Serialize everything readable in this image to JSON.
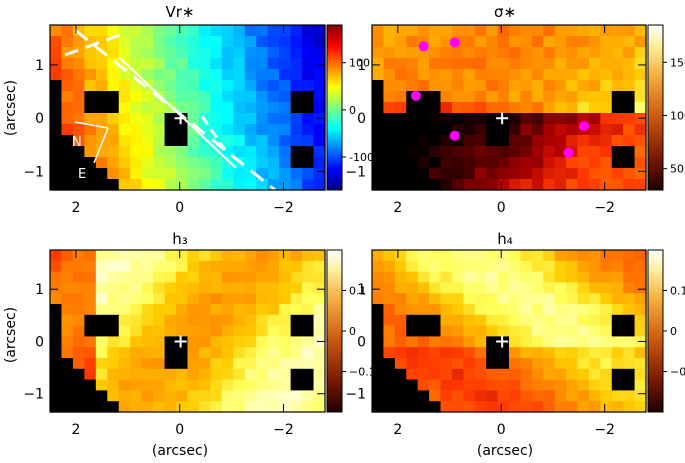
{
  "figure": {
    "y_axis_label": "(arcsec)",
    "x_axis_label": "(arcsec)"
  },
  "chart_data": [
    {
      "type": "heatmap",
      "title": "Vr∗",
      "colormap": "jet",
      "xlim": [
        2.5,
        -2.8
      ],
      "ylim": [
        -1.35,
        1.75
      ],
      "x_ticks": [
        2,
        0,
        -2
      ],
      "y_ticks": [
        1,
        0,
        -1
      ],
      "colorbar_ticks": [
        100,
        0,
        -100
      ],
      "colorbar_range": [
        -170,
        180
      ],
      "compass": {
        "north": "N",
        "east": "E"
      },
      "overlays": [
        "white dashed lines",
        "center cross"
      ]
    },
    {
      "type": "heatmap",
      "title": "σ∗",
      "colormap": "hot",
      "xlim": [
        2.5,
        -2.8
      ],
      "ylim": [
        -1.35,
        1.75
      ],
      "x_ticks": [
        2,
        0,
        -2
      ],
      "y_ticks": [
        1,
        0,
        -1
      ],
      "colorbar_ticks": [
        150,
        100,
        50
      ],
      "colorbar_range": [
        30,
        185
      ],
      "marker_color": "#ff00ff",
      "markers": [
        {
          "x": 1.5,
          "y": 1.35
        },
        {
          "x": 0.9,
          "y": 1.42
        },
        {
          "x": 1.65,
          "y": 0.42
        },
        {
          "x": 0.9,
          "y": -0.33
        },
        {
          "x": -1.6,
          "y": -0.15
        },
        {
          "x": -1.3,
          "y": -0.65
        }
      ]
    },
    {
      "type": "heatmap",
      "title": "h₃",
      "colormap": "hot",
      "xlim": [
        2.5,
        -2.8
      ],
      "ylim": [
        -1.35,
        1.75
      ],
      "x_ticks": [
        2,
        0,
        -2
      ],
      "y_ticks": [
        1,
        0,
        -1
      ],
      "colorbar_ticks": [
        "0.1",
        "0",
        "−0.1"
      ],
      "colorbar_range": [
        -0.2,
        0.2
      ]
    },
    {
      "type": "heatmap",
      "title": "h₄",
      "colormap": "hot",
      "xlim": [
        2.5,
        -2.8
      ],
      "ylim": [
        -1.35,
        1.75
      ],
      "x_ticks": [
        2,
        0,
        -2
      ],
      "y_ticks": [
        1,
        0,
        -1
      ],
      "colorbar_ticks": [
        "0.1",
        "0",
        "−0.1"
      ],
      "colorbar_range": [
        -0.2,
        0.2
      ]
    }
  ]
}
